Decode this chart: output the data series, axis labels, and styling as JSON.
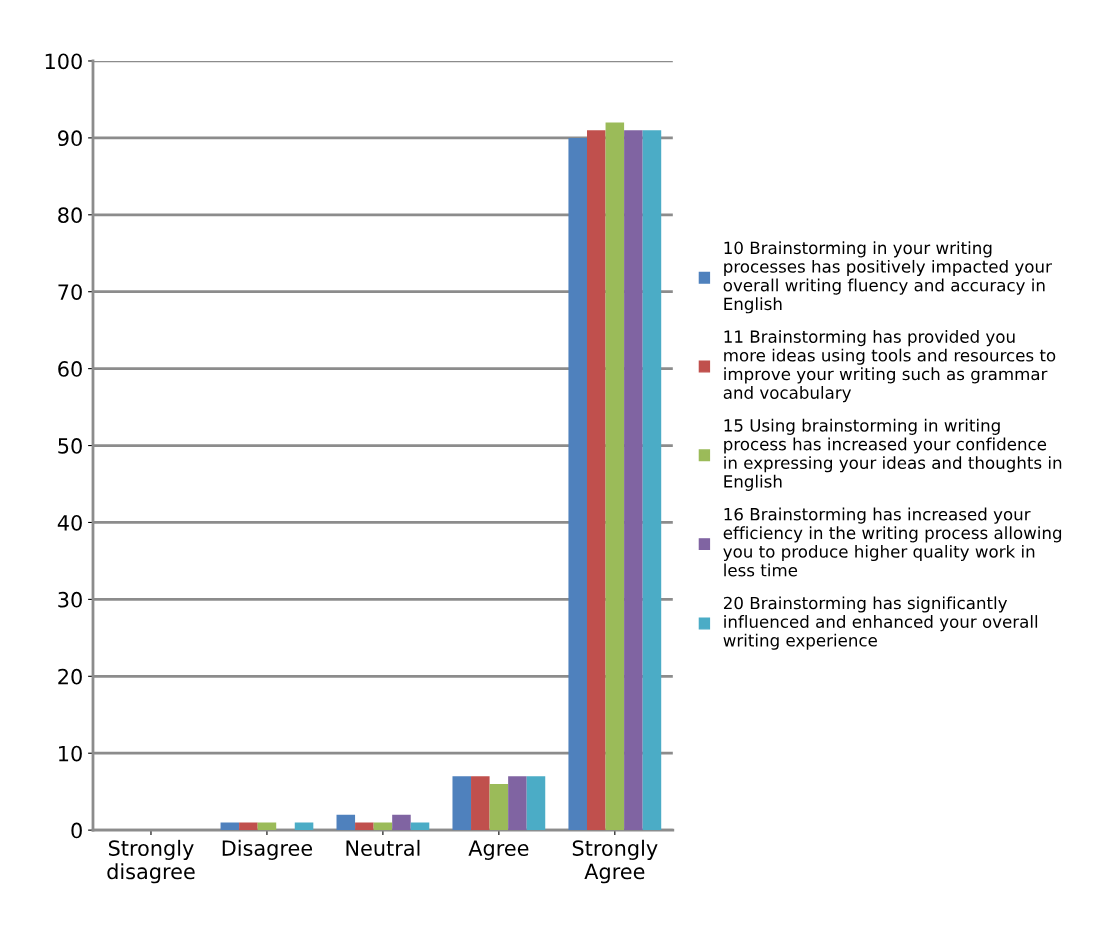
{
  "chart_data": {
    "type": "bar",
    "categories": [
      "Strongly\ndisagree",
      "Disagree",
      "Neutral",
      "Agree",
      "Strongly\nAgree"
    ],
    "series": [
      {
        "name": "10 Brainstorming in your writing processes has positively impacted your overall writing fluency and accuracy in English",
        "color": "#4f81bd",
        "values": [
          0,
          1,
          2,
          7,
          90
        ]
      },
      {
        "name": "11 Brainstorming has provided you more ideas using tools and resources to improve your writing such as grammar and vocabulary",
        "color": "#c0504d",
        "values": [
          0,
          1,
          1,
          7,
          91
        ]
      },
      {
        "name": "15 Using brainstorming in writing process has increased your confidence in expressing your ideas and thoughts in English",
        "color": "#9bbb59",
        "values": [
          0,
          1,
          1,
          6,
          92
        ]
      },
      {
        "name": "16 Brainstorming has increased your efficiency in the writing process allowing you to produce higher quality work in less time",
        "color": "#8064a2",
        "values": [
          0,
          0,
          2,
          7,
          91
        ]
      },
      {
        "name": "20 Brainstorming has significantly influenced and enhanced your overall writing experience",
        "color": "#4bacc6",
        "values": [
          0,
          1,
          1,
          7,
          91
        ]
      }
    ],
    "ylim": [
      0,
      100
    ],
    "yticks": [
      0,
      10,
      20,
      30,
      40,
      50,
      60,
      70,
      80,
      90,
      100
    ],
    "grid": "y",
    "legend": "right"
  }
}
